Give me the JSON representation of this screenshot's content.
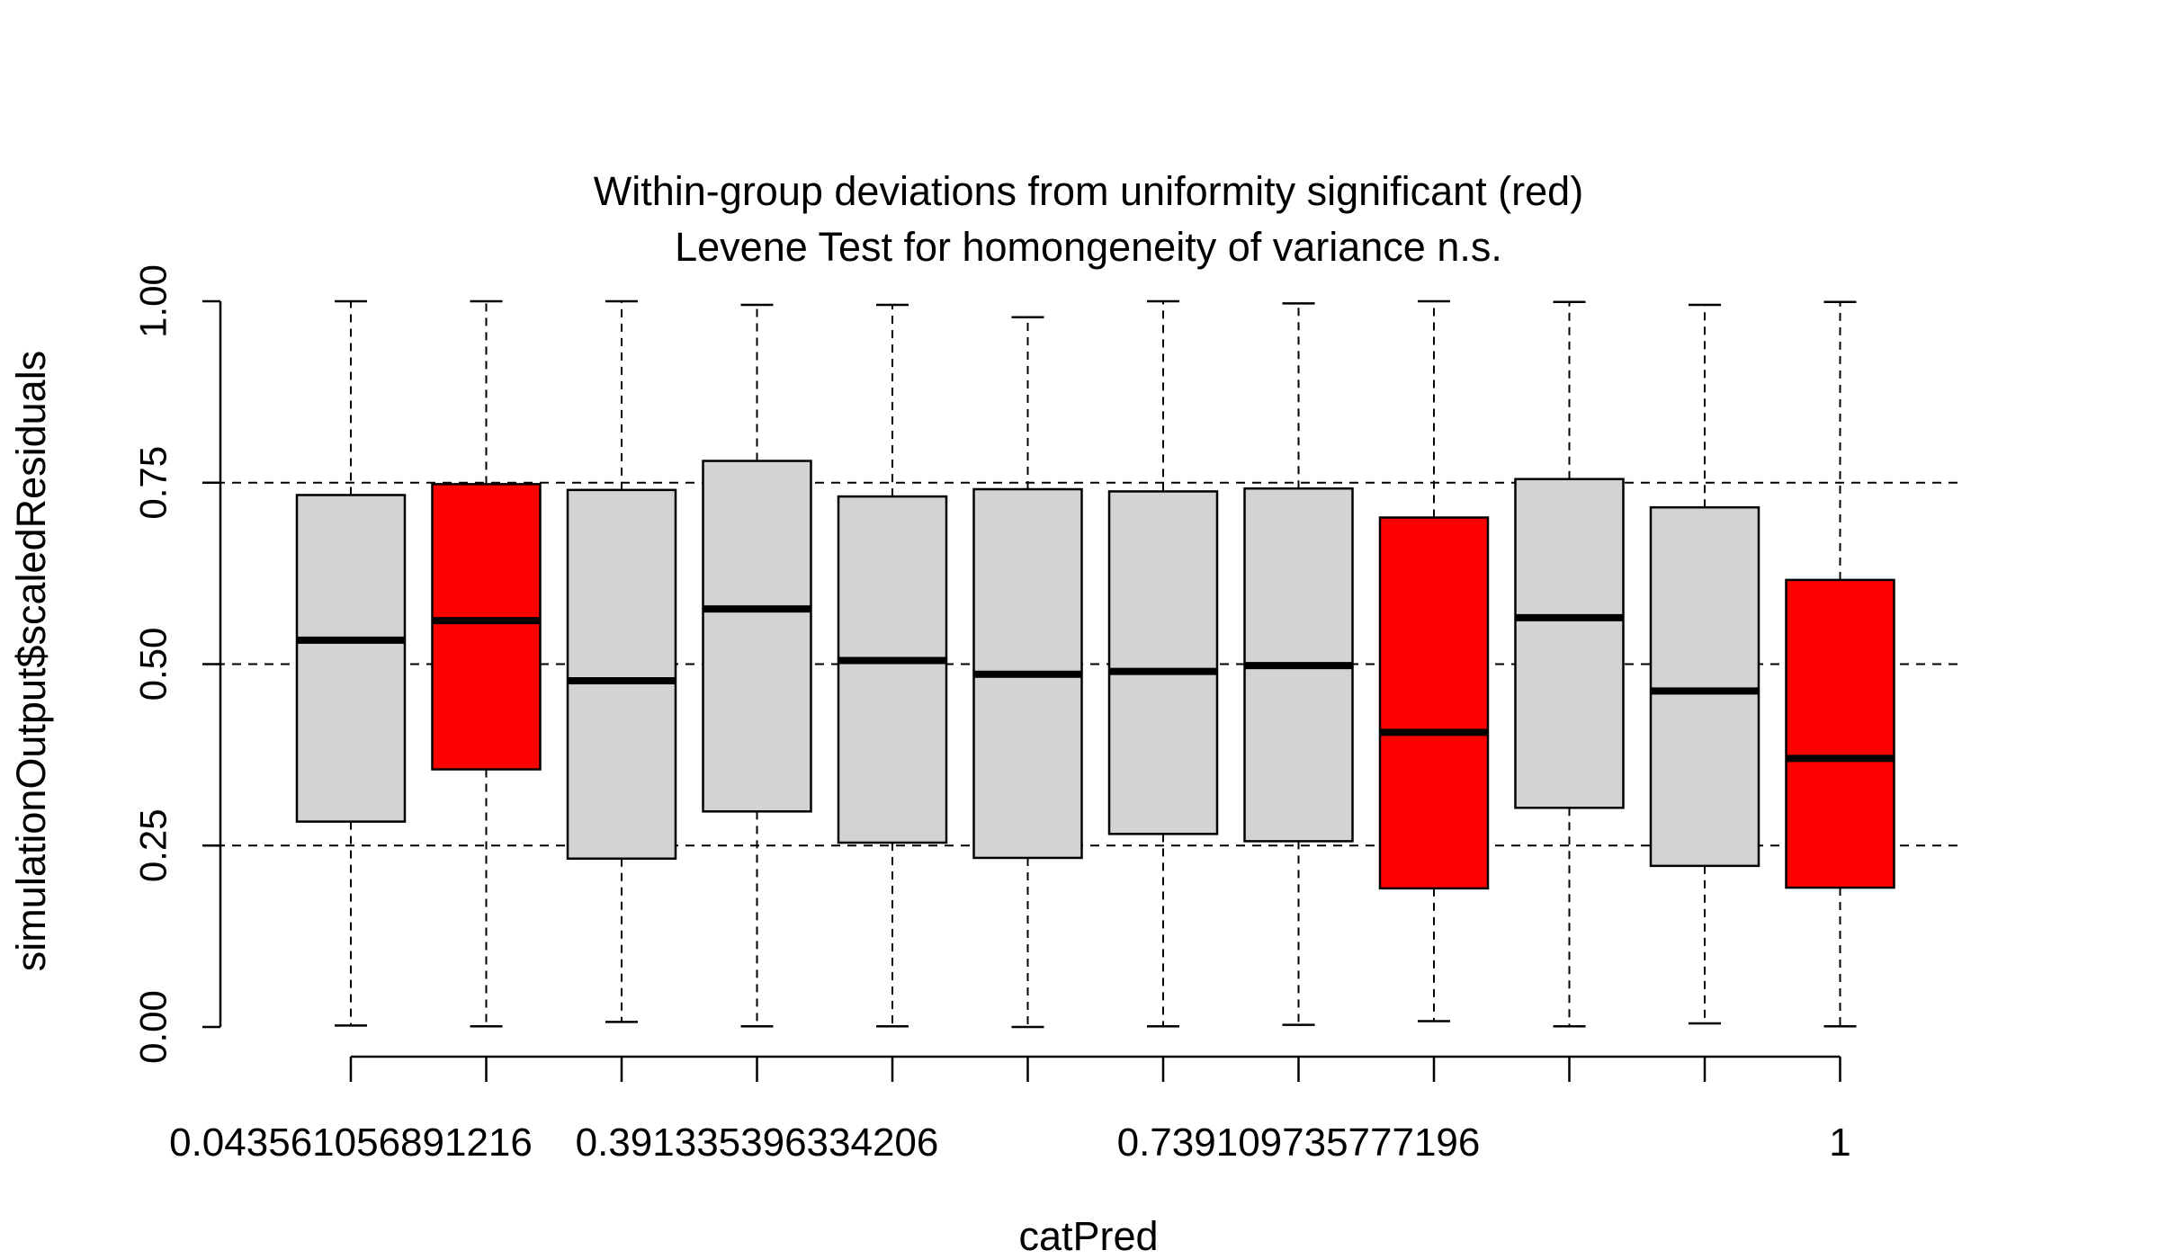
{
  "chart_data": {
    "type": "boxplot",
    "title_line1": "Within-group deviations from uniformity significant (red)",
    "title_line2": "Levene Test for homongeneity of variance n.s.",
    "xlabel": "catPred",
    "ylabel": "simulationOutput$scaledResiduals",
    "ylim": [
      0,
      1
    ],
    "yticks": [
      "0.00",
      "0.25",
      "0.50",
      "0.75",
      "1.00"
    ],
    "hlines": [
      0.25,
      0.5,
      0.75
    ],
    "x_tick_labels": [
      {
        "index": 0,
        "label": "0.043561056891216"
      },
      {
        "index": 3,
        "label": "0.391335396334206"
      },
      {
        "index": 7,
        "label": "0.739109735777196"
      },
      {
        "index": 11,
        "label": "1"
      }
    ],
    "colors": {
      "normal": "#d3d3d3",
      "significant": "#ff0000",
      "title_red": "#ff0000",
      "title": "#000000"
    },
    "groups": [
      {
        "min": 0.002,
        "q1": 0.283,
        "median": 0.533,
        "q3": 0.733,
        "max": 1.0,
        "significant": false
      },
      {
        "min": 0.001,
        "q1": 0.355,
        "median": 0.56,
        "q3": 0.748,
        "max": 1.0,
        "significant": true
      },
      {
        "min": 0.007,
        "q1": 0.232,
        "median": 0.477,
        "q3": 0.74,
        "max": 1.0,
        "significant": false
      },
      {
        "min": 0.001,
        "q1": 0.297,
        "median": 0.576,
        "q3": 0.78,
        "max": 0.995,
        "significant": false
      },
      {
        "min": 0.001,
        "q1": 0.254,
        "median": 0.505,
        "q3": 0.731,
        "max": 0.995,
        "significant": false
      },
      {
        "min": 0.0,
        "q1": 0.233,
        "median": 0.486,
        "q3": 0.741,
        "max": 0.978,
        "significant": false
      },
      {
        "min": 0.001,
        "q1": 0.266,
        "median": 0.49,
        "q3": 0.738,
        "max": 1.0,
        "significant": false
      },
      {
        "min": 0.003,
        "q1": 0.256,
        "median": 0.498,
        "q3": 0.742,
        "max": 0.997,
        "significant": false
      },
      {
        "min": 0.008,
        "q1": 0.191,
        "median": 0.406,
        "q3": 0.702,
        "max": 1.0,
        "significant": true
      },
      {
        "min": 0.001,
        "q1": 0.302,
        "median": 0.564,
        "q3": 0.755,
        "max": 0.999,
        "significant": false
      },
      {
        "min": 0.005,
        "q1": 0.222,
        "median": 0.463,
        "q3": 0.716,
        "max": 0.995,
        "significant": false
      },
      {
        "min": 0.001,
        "q1": 0.192,
        "median": 0.37,
        "q3": 0.616,
        "max": 0.999,
        "significant": true
      }
    ]
  }
}
